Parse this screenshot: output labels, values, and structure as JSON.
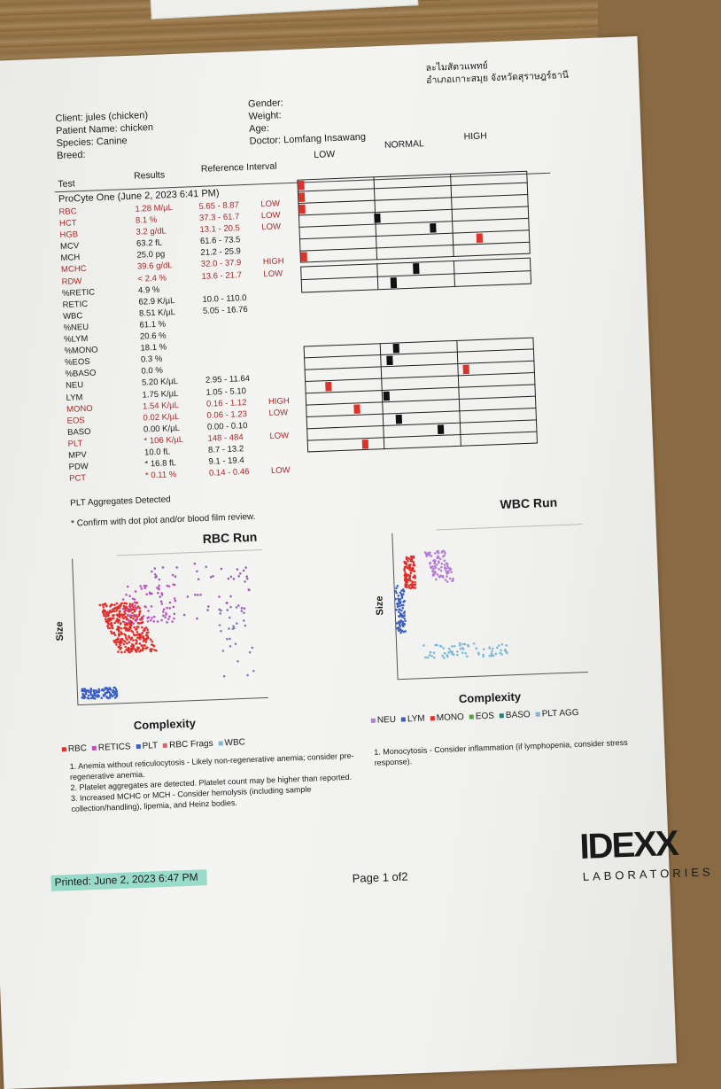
{
  "clinic": {
    "line1": "ละไมสัตวแพทย์",
    "line2": "อำเภอเกาะสมุย จังหวัดสุราษฎร์ธานี"
  },
  "patient": {
    "client": "Client: jules (chicken)",
    "patient_name": "Patient Name: chicken",
    "species": "Species: Canine",
    "breed": "Breed:",
    "gender": "Gender:",
    "weight": "Weight:",
    "age": "Age:",
    "doctor": "Doctor: Lomfang  Insawang"
  },
  "columns": {
    "test": "Test",
    "results": "Results",
    "reference": "Reference Interval",
    "low": "LOW",
    "normal": "NORMAL",
    "high": "HIGH"
  },
  "run_title": "ProCyte One (June 2, 2023 6:41 PM)",
  "rows": [
    {
      "test": "RBC",
      "result": "1.28 M/µL",
      "ref": "5.65 - 8.87",
      "flag": "LOW",
      "abn": true
    },
    {
      "test": "HCT",
      "result": "8.1 %",
      "ref": "37.3 - 61.7",
      "flag": "LOW",
      "abn": true
    },
    {
      "test": "HGB",
      "result": "3.2 g/dL",
      "ref": "13.1 - 20.5",
      "flag": "LOW",
      "abn": true
    },
    {
      "test": "MCV",
      "result": "63.2 fL",
      "ref": "61.6 - 73.5",
      "flag": "",
      "abn": false
    },
    {
      "test": "MCH",
      "result": "25.0 pg",
      "ref": "21.2 - 25.9",
      "flag": "",
      "abn": false
    },
    {
      "test": "MCHC",
      "result": "39.6 g/dL",
      "ref": "32.0 - 37.9",
      "flag": "HIGH",
      "abn": true
    },
    {
      "test": "RDW",
      "result": "< 2.4 %",
      "ref": "13.6 - 21.7",
      "flag": "LOW",
      "abn": true
    },
    {
      "test": "%RETIC",
      "result": "4.9 %",
      "ref": "",
      "flag": "",
      "abn": false
    },
    {
      "test": "RETIC",
      "result": "62.9 K/µL",
      "ref": "10.0 - 110.0",
      "flag": "",
      "abn": false
    },
    {
      "test": "WBC",
      "result": "8.51 K/µL",
      "ref": "5.05 - 16.76",
      "flag": "",
      "abn": false
    },
    {
      "test": "%NEU",
      "result": "61.1 %",
      "ref": "",
      "flag": "",
      "abn": false
    },
    {
      "test": "%LYM",
      "result": "20.6 %",
      "ref": "",
      "flag": "",
      "abn": false
    },
    {
      "test": "%MONO",
      "result": "18.1 %",
      "ref": "",
      "flag": "",
      "abn": false
    },
    {
      "test": "%EOS",
      "result": "0.3 %",
      "ref": "",
      "flag": "",
      "abn": false
    },
    {
      "test": "%BASO",
      "result": "0.0 %",
      "ref": "",
      "flag": "",
      "abn": false
    },
    {
      "test": "NEU",
      "result": "5.20 K/µL",
      "ref": "2.95 - 11.64",
      "flag": "",
      "abn": false
    },
    {
      "test": "LYM",
      "result": "1.75 K/µL",
      "ref": "1.05 - 5.10",
      "flag": "",
      "abn": false
    },
    {
      "test": "MONO",
      "result": "1.54 K/µL",
      "ref": "0.16 - 1.12",
      "flag": "HIGH",
      "abn": true
    },
    {
      "test": "EOS",
      "result": "0.02 K/µL",
      "ref": "0.06 - 1.23",
      "flag": "LOW",
      "abn": true
    },
    {
      "test": "BASO",
      "result": "0.00 K/µL",
      "ref": "0.00 - 0.10",
      "flag": "",
      "abn": false
    },
    {
      "test": "PLT",
      "result": "* 106 K/µL",
      "ref": "148 - 484",
      "flag": "LOW",
      "abn": true
    },
    {
      "test": "MPV",
      "result": "10.0 fL",
      "ref": "8.7 - 13.2",
      "flag": "",
      "abn": false
    },
    {
      "test": "PDW",
      "result": "* 16.8 fL",
      "ref": "9.1 - 19.4",
      "flag": "",
      "abn": false
    },
    {
      "test": "PCT",
      "result": "* 0.11 %",
      "ref": "0.14 - 0.46",
      "flag": "LOW",
      "abn": true
    }
  ],
  "plt_aggregates": "PLT Aggregates Detected",
  "confirm_note": "* Confirm with dot plot and/or blood film review.",
  "rbc_plot": {
    "title": "RBC Run",
    "ylabel": "Size",
    "xlabel": "Complexity",
    "legend": [
      "RBC",
      "RETICS",
      "PLT",
      "RBC Frags",
      "WBC"
    ]
  },
  "wbc_plot": {
    "title": "WBC Run",
    "ylabel": "Size",
    "xlabel": "Complexity",
    "legend": [
      "NEU",
      "LYM",
      "MONO",
      "EOS",
      "BASO",
      "PLT AGG"
    ]
  },
  "comments_rbc": [
    "1. Anemia without reticulocytosis - Likely non-regenerative anemia; consider pre-regenerative anemia.",
    "2. Platelet aggregates are detected. Platelet count may be higher than reported.",
    "3. Increased MCHC or MCH - Consider hemolysis (including sample collection/handling), lipemia, and Heinz bodies."
  ],
  "comments_wbc": [
    "1. Monocytosis - Consider inflammation (if lymphopenia, consider stress response)."
  ],
  "footer": {
    "printed": "Printed: June 2, 2023 6:47 PM",
    "page": "Page 1 of2",
    "logo": "IDEXX",
    "logo_sub": "LABORATORIES"
  },
  "colors": {
    "abnormal_text": "#a52a2a",
    "bar_red": "#d9342b",
    "bar_black": "#111111",
    "rbc": "#e02f2a",
    "retics": "#c24fc0",
    "plt": "#3a5fc0",
    "wbc_agg": "#7ab8d6",
    "neu": "#b57bd8",
    "highlighter": "#50c8aa"
  },
  "bars": {
    "rbc_block": [
      {
        "pos": 0.0,
        "red": true
      },
      {
        "pos": 0.0,
        "red": true
      },
      {
        "pos": 0.0,
        "red": true
      },
      {
        "pos": 0.34,
        "red": false
      },
      {
        "pos": 0.58,
        "red": false
      },
      {
        "pos": 0.78,
        "red": true
      },
      {
        "pos": 0.0,
        "red": true
      }
    ],
    "retic_block": [
      {
        "pos": 0.5,
        "red": false
      },
      {
        "pos": 0.4,
        "red": false
      }
    ],
    "wbc_block": [
      {
        "pos": 0.4,
        "red": false
      },
      {
        "pos": 0.37,
        "red": false
      },
      {
        "pos": 0.7,
        "red": true
      },
      {
        "pos": 0.1,
        "red": true
      },
      {
        "pos": 0.35,
        "red": false
      },
      {
        "pos": 0.22,
        "red": true
      },
      {
        "pos": 0.4,
        "red": false
      },
      {
        "pos": 0.58,
        "red": false
      },
      {
        "pos": 0.25,
        "red": true
      }
    ]
  }
}
